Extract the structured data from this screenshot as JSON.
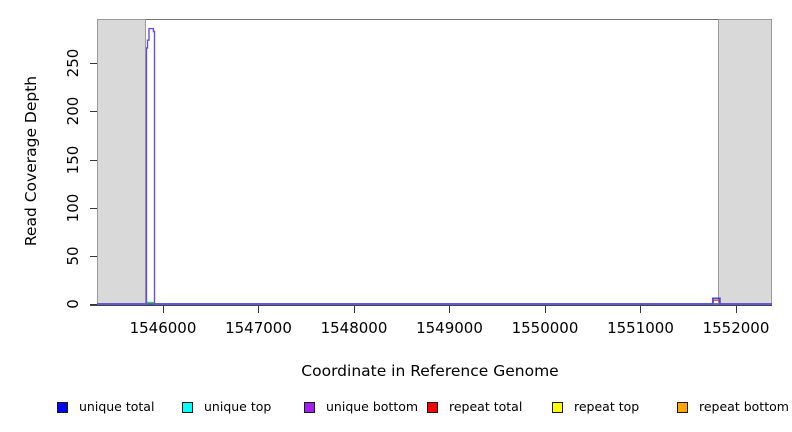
{
  "figure": {
    "x_axis_title": "Coordinate in Reference Genome",
    "y_axis_title": "Read Coverage Depth"
  },
  "chart_data": {
    "type": "line",
    "title": "",
    "xlabel": "Coordinate in Reference Genome",
    "ylabel": "Read Coverage Depth",
    "xlim": [
      1545309,
      1552377
    ],
    "ylim": [
      0,
      296
    ],
    "x_ticks": [
      1546000,
      1547000,
      1548000,
      1549000,
      1550000,
      1551000,
      1552000
    ],
    "y_ticks": [
      0,
      50,
      100,
      150,
      200,
      250
    ],
    "grid": false,
    "legend_position": "bottom",
    "highlight_regions": [
      {
        "name": "left-masked-region",
        "x0": 1545309,
        "x1": 1545822,
        "color": "#d9d9d9"
      },
      {
        "name": "right-masked-region",
        "x0": 1551811,
        "x1": 1552377,
        "color": "#d9d9d9"
      }
    ],
    "series": [
      {
        "name": "repeat top",
        "color": "#FFFF00",
        "stroke": "#e8e000",
        "points": [
          [
            1545309,
            0
          ],
          [
            1552377,
            0
          ]
        ]
      },
      {
        "name": "repeat bottom",
        "color": "#FFA500",
        "stroke": "#f0a000",
        "points": [
          [
            1545309,
            0
          ],
          [
            1552377,
            0
          ]
        ]
      },
      {
        "name": "repeat total",
        "color": "#FF0000",
        "stroke": "#e03030",
        "points": [
          [
            1545309,
            0
          ],
          [
            1551761,
            0
          ],
          [
            1551761,
            4
          ],
          [
            1551829,
            4
          ],
          [
            1551829,
            0
          ],
          [
            1552377,
            0
          ]
        ]
      },
      {
        "name": "unique top",
        "color": "#00FFFF",
        "stroke": "#00d8d8",
        "points": [
          [
            1545309,
            0
          ],
          [
            1552377,
            0
          ]
        ]
      },
      {
        "name": "unique total",
        "color": "#0000FF",
        "stroke": "#2f3fe0",
        "points": [
          [
            1545309,
            0
          ],
          [
            1551757,
            0
          ],
          [
            1551757,
            6
          ],
          [
            1551833,
            6
          ],
          [
            1551833,
            0
          ],
          [
            1552377,
            0
          ]
        ]
      },
      {
        "name": "unique bottom",
        "color": "#A020F0",
        "stroke": "#6650e0",
        "points": [
          [
            1545309,
            0
          ],
          [
            1545827,
            0
          ],
          [
            1545827,
            266
          ],
          [
            1545838,
            266
          ],
          [
            1545838,
            274
          ],
          [
            1545853,
            274
          ],
          [
            1545853,
            286
          ],
          [
            1545900,
            286
          ],
          [
            1545900,
            283
          ],
          [
            1545911,
            283
          ],
          [
            1545911,
            0
          ],
          [
            1552377,
            0
          ]
        ]
      }
    ],
    "extra_marks": [
      {
        "name": "green-base-segment",
        "stroke": "#44cc44",
        "points": [
          [
            1545834,
            1.5
          ],
          [
            1545903,
            1.5
          ]
        ]
      }
    ],
    "legend": [
      {
        "label": "unique total",
        "color": "#0000FF"
      },
      {
        "label": "unique top",
        "color": "#00FFFF"
      },
      {
        "label": "unique bottom",
        "color": "#A020F0"
      },
      {
        "label": "repeat total",
        "color": "#FF0000"
      },
      {
        "label": "repeat top",
        "color": "#FFFF00"
      },
      {
        "label": "repeat bottom",
        "color": "#FFA500"
      }
    ]
  }
}
